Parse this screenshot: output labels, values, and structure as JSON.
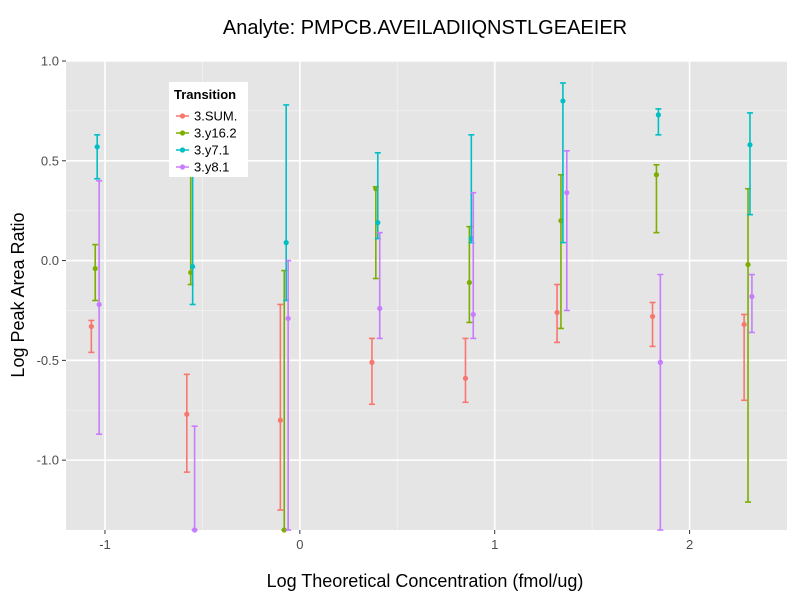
{
  "chart_data": {
    "type": "scatter",
    "title": "Analyte: PMPCB.AVEILADIIQNSTLGEAEIER",
    "xlabel": "Log Theoretical Concentration (fmol/ug)",
    "ylabel": "Log Peak Area Ratio",
    "xlim": [
      -1.2,
      2.5
    ],
    "ylim": [
      -1.35,
      1.0
    ],
    "x_ticks": [
      -1,
      0,
      1,
      2
    ],
    "x_tick_labels": [
      "-1",
      "0",
      "1",
      "2"
    ],
    "y_ticks": [
      -1.0,
      -0.5,
      0.0,
      0.5,
      1.0
    ],
    "y_tick_labels": [
      "-1.0",
      "-0.5",
      "0.0",
      "0.5",
      "1.0"
    ],
    "grid": true,
    "legend": {
      "title": "Transition",
      "position": "top-left"
    },
    "series": [
      {
        "name": "3.SUM.",
        "color": "#F8766D",
        "points": [
          {
            "x": -1.07,
            "y": -0.33,
            "low": -0.46,
            "high": -0.3
          },
          {
            "x": -0.58,
            "y": -0.77,
            "low": -1.06,
            "high": -0.57
          },
          {
            "x": -0.1,
            "y": -0.8,
            "low": -1.25,
            "high": -0.22
          },
          {
            "x": 0.37,
            "y": -0.51,
            "low": -0.72,
            "high": -0.39
          },
          {
            "x": 0.85,
            "y": -0.59,
            "low": -0.71,
            "high": -0.39
          },
          {
            "x": 1.32,
            "y": -0.26,
            "low": -0.41,
            "high": -0.12
          },
          {
            "x": 1.81,
            "y": -0.28,
            "low": -0.43,
            "high": -0.21
          },
          {
            "x": 2.28,
            "y": -0.32,
            "low": -0.7,
            "high": -0.27
          }
        ]
      },
      {
        "name": "3.y16.2",
        "color": "#7CAE00",
        "points": [
          {
            "x": -1.05,
            "y": -0.04,
            "low": -0.2,
            "high": 0.08
          },
          {
            "x": -0.56,
            "y": -0.06,
            "low": -0.12,
            "high": 0.5
          },
          {
            "x": -0.08,
            "y": -1.35,
            "low": -1.35,
            "high": -0.05
          },
          {
            "x": 0.39,
            "y": 0.36,
            "low": -0.09,
            "high": 0.37
          },
          {
            "x": 0.87,
            "y": -0.11,
            "low": -0.31,
            "high": 0.17
          },
          {
            "x": 1.34,
            "y": 0.2,
            "low": -0.34,
            "high": 0.43
          },
          {
            "x": 1.83,
            "y": 0.43,
            "low": 0.14,
            "high": 0.48
          },
          {
            "x": 2.3,
            "y": -0.02,
            "low": -1.21,
            "high": 0.36
          }
        ]
      },
      {
        "name": "3.y7.1",
        "color": "#00BFC4",
        "points": [
          {
            "x": -1.04,
            "y": 0.57,
            "low": 0.41,
            "high": 0.63
          },
          {
            "x": -0.55,
            "y": -0.03,
            "low": -0.22,
            "high": 0.5
          },
          {
            "x": -0.07,
            "y": 0.09,
            "low": -0.2,
            "high": 0.78
          },
          {
            "x": 0.4,
            "y": 0.19,
            "low": 0.11,
            "high": 0.54
          },
          {
            "x": 0.88,
            "y": 0.11,
            "low": 0.09,
            "high": 0.63
          },
          {
            "x": 1.35,
            "y": 0.8,
            "low": 0.09,
            "high": 0.89
          },
          {
            "x": 1.84,
            "y": 0.73,
            "low": 0.63,
            "high": 0.76
          },
          {
            "x": 2.31,
            "y": 0.58,
            "low": 0.23,
            "high": 0.74
          }
        ]
      },
      {
        "name": "3.y8.1",
        "color": "#C77CFF",
        "points": [
          {
            "x": -1.03,
            "y": -0.22,
            "low": -0.87,
            "high": 0.4
          },
          {
            "x": -0.54,
            "y": -1.35,
            "low": -1.35,
            "high": -0.83
          },
          {
            "x": -0.06,
            "y": -0.29,
            "low": -1.35,
            "high": 0.0
          },
          {
            "x": 0.41,
            "y": -0.24,
            "low": -0.39,
            "high": 0.14
          },
          {
            "x": 0.89,
            "y": -0.27,
            "low": -0.39,
            "high": 0.34
          },
          {
            "x": 1.37,
            "y": 0.34,
            "low": -0.25,
            "high": 0.55
          },
          {
            "x": 1.85,
            "y": -0.51,
            "low": -1.35,
            "high": -0.07
          },
          {
            "x": 2.32,
            "y": -0.18,
            "low": -0.36,
            "high": -0.07
          }
        ]
      }
    ]
  }
}
